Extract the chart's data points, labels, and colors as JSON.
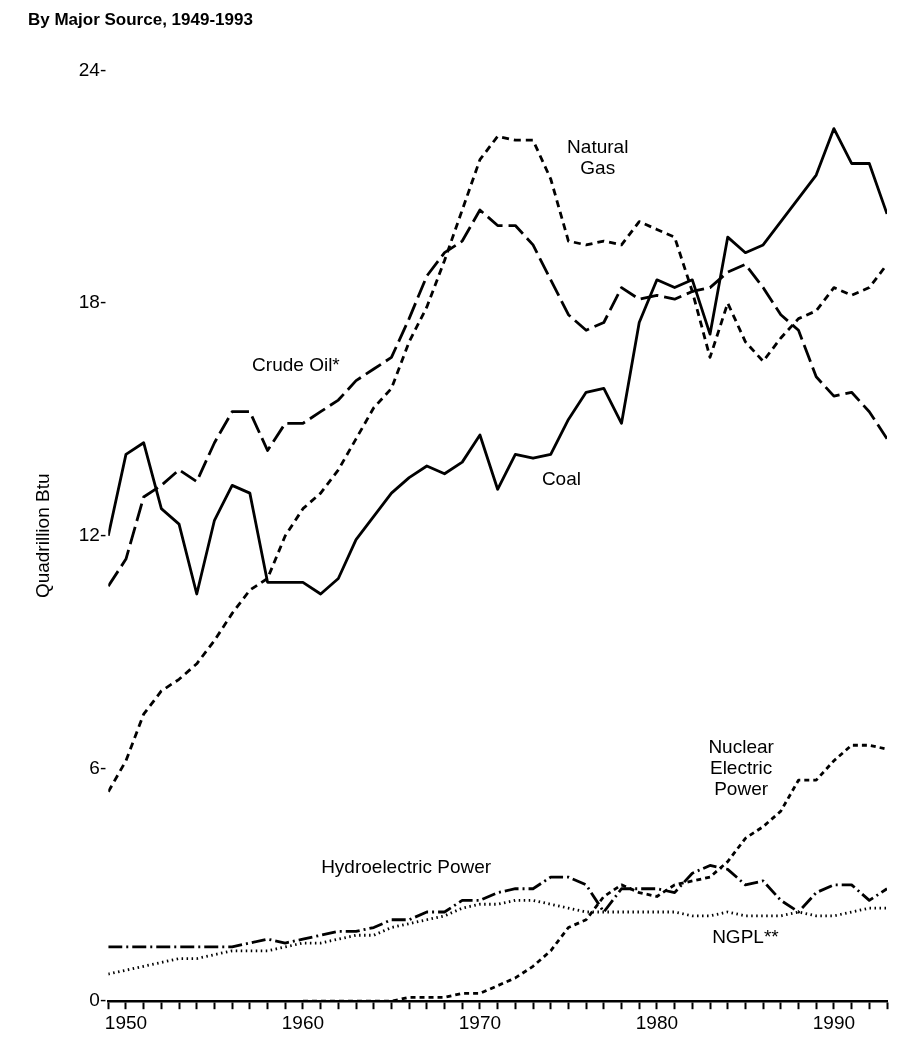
{
  "chart_data": {
    "type": "line",
    "title": "By Major Source, 1949-1993",
    "ylabel": "Quadrillion Btu",
    "x": [
      1949,
      1950,
      1951,
      1952,
      1953,
      1954,
      1955,
      1956,
      1957,
      1958,
      1959,
      1960,
      1961,
      1962,
      1963,
      1964,
      1965,
      1966,
      1967,
      1968,
      1969,
      1970,
      1971,
      1972,
      1973,
      1974,
      1975,
      1976,
      1977,
      1978,
      1979,
      1980,
      1981,
      1982,
      1983,
      1984,
      1985,
      1986,
      1987,
      1988,
      1989,
      1990,
      1991,
      1992,
      1993
    ],
    "xlim": [
      1949,
      1993
    ],
    "xticks": [
      {
        "value": 1949,
        "label": null
      },
      1950,
      {
        "value": 1951,
        "label": null
      },
      {
        "value": 1952,
        "label": null
      },
      {
        "value": 1953,
        "label": null
      },
      {
        "value": 1954,
        "label": null
      },
      {
        "value": 1955,
        "label": null
      },
      {
        "value": 1956,
        "label": null
      },
      {
        "value": 1957,
        "label": null
      },
      {
        "value": 1958,
        "label": null
      },
      {
        "value": 1959,
        "label": null
      },
      1960,
      {
        "value": 1961,
        "label": null
      },
      {
        "value": 1962,
        "label": null
      },
      {
        "value": 1963,
        "label": null
      },
      {
        "value": 1964,
        "label": null
      },
      {
        "value": 1965,
        "label": null
      },
      {
        "value": 1966,
        "label": null
      },
      {
        "value": 1967,
        "label": null
      },
      {
        "value": 1968,
        "label": null
      },
      {
        "value": 1969,
        "label": null
      },
      1970,
      {
        "value": 1971,
        "label": null
      },
      {
        "value": 1972,
        "label": null
      },
      {
        "value": 1973,
        "label": null
      },
      {
        "value": 1974,
        "label": null
      },
      {
        "value": 1975,
        "label": null
      },
      {
        "value": 1976,
        "label": null
      },
      {
        "value": 1977,
        "label": null
      },
      {
        "value": 1978,
        "label": null
      },
      {
        "value": 1979,
        "label": null
      },
      1980,
      {
        "value": 1981,
        "label": null
      },
      {
        "value": 1982,
        "label": null
      },
      {
        "value": 1983,
        "label": null
      },
      {
        "value": 1984,
        "label": null
      },
      {
        "value": 1985,
        "label": null
      },
      {
        "value": 1986,
        "label": null
      },
      {
        "value": 1987,
        "label": null
      },
      {
        "value": 1988,
        "label": null
      },
      {
        "value": 1989,
        "label": null
      },
      1990,
      {
        "value": 1991,
        "label": null
      },
      {
        "value": 1992,
        "label": null
      },
      {
        "value": 1993,
        "label": null
      }
    ],
    "ylim": [
      0,
      24
    ],
    "yticks": [
      {
        "value": 0,
        "label": "0-"
      },
      {
        "value": 6,
        "label": "6-"
      },
      {
        "value": 12,
        "label": "12-"
      },
      {
        "value": 18,
        "label": "18-"
      },
      {
        "value": 24,
        "label": "24-"
      }
    ],
    "grid": false,
    "legend": false,
    "marker": "none",
    "series": [
      {
        "name": "Natural Gas",
        "color": "#000000",
        "line_style": "dashed",
        "values": [
          5.4,
          6.2,
          7.4,
          8.0,
          8.3,
          8.7,
          9.3,
          10.0,
          10.6,
          10.9,
          12.0,
          12.7,
          13.1,
          13.7,
          14.5,
          15.3,
          15.8,
          17.0,
          17.9,
          19.1,
          20.4,
          21.7,
          22.3,
          22.2,
          22.2,
          21.2,
          19.6,
          19.5,
          19.6,
          19.5,
          20.1,
          19.9,
          19.7,
          18.3,
          16.6,
          18.0,
          17.0,
          16.5,
          17.1,
          17.6,
          17.8,
          18.4,
          18.2,
          18.4,
          19.0
        ]
      },
      {
        "name": "Crude Oil*",
        "color": "#000000",
        "line_style": "dashed",
        "values": [
          10.7,
          11.4,
          13.0,
          13.3,
          13.7,
          13.4,
          14.4,
          15.2,
          15.2,
          14.2,
          14.9,
          14.9,
          15.2,
          15.5,
          16.0,
          16.3,
          16.6,
          17.6,
          18.7,
          19.3,
          19.6,
          20.4,
          20.0,
          20.0,
          19.5,
          18.6,
          17.7,
          17.3,
          17.5,
          18.4,
          18.1,
          18.2,
          18.1,
          18.3,
          18.4,
          18.8,
          19.0,
          18.4,
          17.7,
          17.3,
          16.1,
          15.6,
          15.7,
          15.2,
          14.5
        ]
      },
      {
        "name": "Coal",
        "color": "#000000",
        "line_style": "solid",
        "values": [
          12.0,
          14.1,
          14.4,
          12.7,
          12.3,
          10.5,
          12.4,
          13.3,
          13.1,
          10.8,
          10.8,
          10.8,
          10.5,
          10.9,
          11.9,
          12.5,
          13.1,
          13.5,
          13.8,
          13.6,
          13.9,
          14.6,
          13.2,
          14.1,
          14.0,
          14.1,
          15.0,
          15.7,
          15.8,
          14.9,
          17.5,
          18.6,
          18.4,
          18.6,
          17.2,
          19.7,
          19.3,
          19.5,
          20.1,
          20.7,
          21.3,
          22.5,
          21.6,
          21.6,
          20.3
        ]
      },
      {
        "name": "Hydroelectric Power",
        "color": "#000000",
        "line_style": "dashed",
        "values": [
          1.4,
          1.4,
          1.4,
          1.4,
          1.4,
          1.4,
          1.4,
          1.4,
          1.5,
          1.6,
          1.5,
          1.6,
          1.7,
          1.8,
          1.8,
          1.9,
          2.1,
          2.1,
          2.3,
          2.3,
          2.6,
          2.6,
          2.8,
          2.9,
          2.9,
          3.2,
          3.2,
          3.0,
          2.3,
          2.9,
          2.9,
          2.9,
          2.8,
          3.3,
          3.5,
          3.4,
          3.0,
          3.1,
          2.6,
          2.3,
          2.8,
          3.0,
          3.0,
          2.6,
          2.9
        ]
      },
      {
        "name": "Nuclear Electric Power",
        "color": "#000000",
        "line_style": "dashed",
        "values": [
          null,
          null,
          null,
          null,
          null,
          null,
          null,
          null,
          null,
          null,
          null,
          0.0,
          0.0,
          0.0,
          0.0,
          0.0,
          0.0,
          0.1,
          0.1,
          0.1,
          0.2,
          0.2,
          0.4,
          0.6,
          0.9,
          1.3,
          1.9,
          2.1,
          2.7,
          3.0,
          2.8,
          2.7,
          3.0,
          3.1,
          3.2,
          3.6,
          4.2,
          4.5,
          4.9,
          5.7,
          5.7,
          6.2,
          6.6,
          6.6,
          6.5
        ]
      },
      {
        "name": "NGPL**",
        "color": "#000000",
        "line_style": "dotted",
        "values": [
          0.7,
          0.8,
          0.9,
          1.0,
          1.1,
          1.1,
          1.2,
          1.3,
          1.3,
          1.3,
          1.4,
          1.5,
          1.5,
          1.6,
          1.7,
          1.7,
          1.9,
          2.0,
          2.1,
          2.2,
          2.4,
          2.5,
          2.5,
          2.6,
          2.6,
          2.5,
          2.4,
          2.3,
          2.3,
          2.3,
          2.3,
          2.3,
          2.3,
          2.2,
          2.2,
          2.3,
          2.2,
          2.2,
          2.2,
          2.3,
          2.2,
          2.2,
          2.3,
          2.4,
          2.4
        ]
      }
    ]
  }
}
